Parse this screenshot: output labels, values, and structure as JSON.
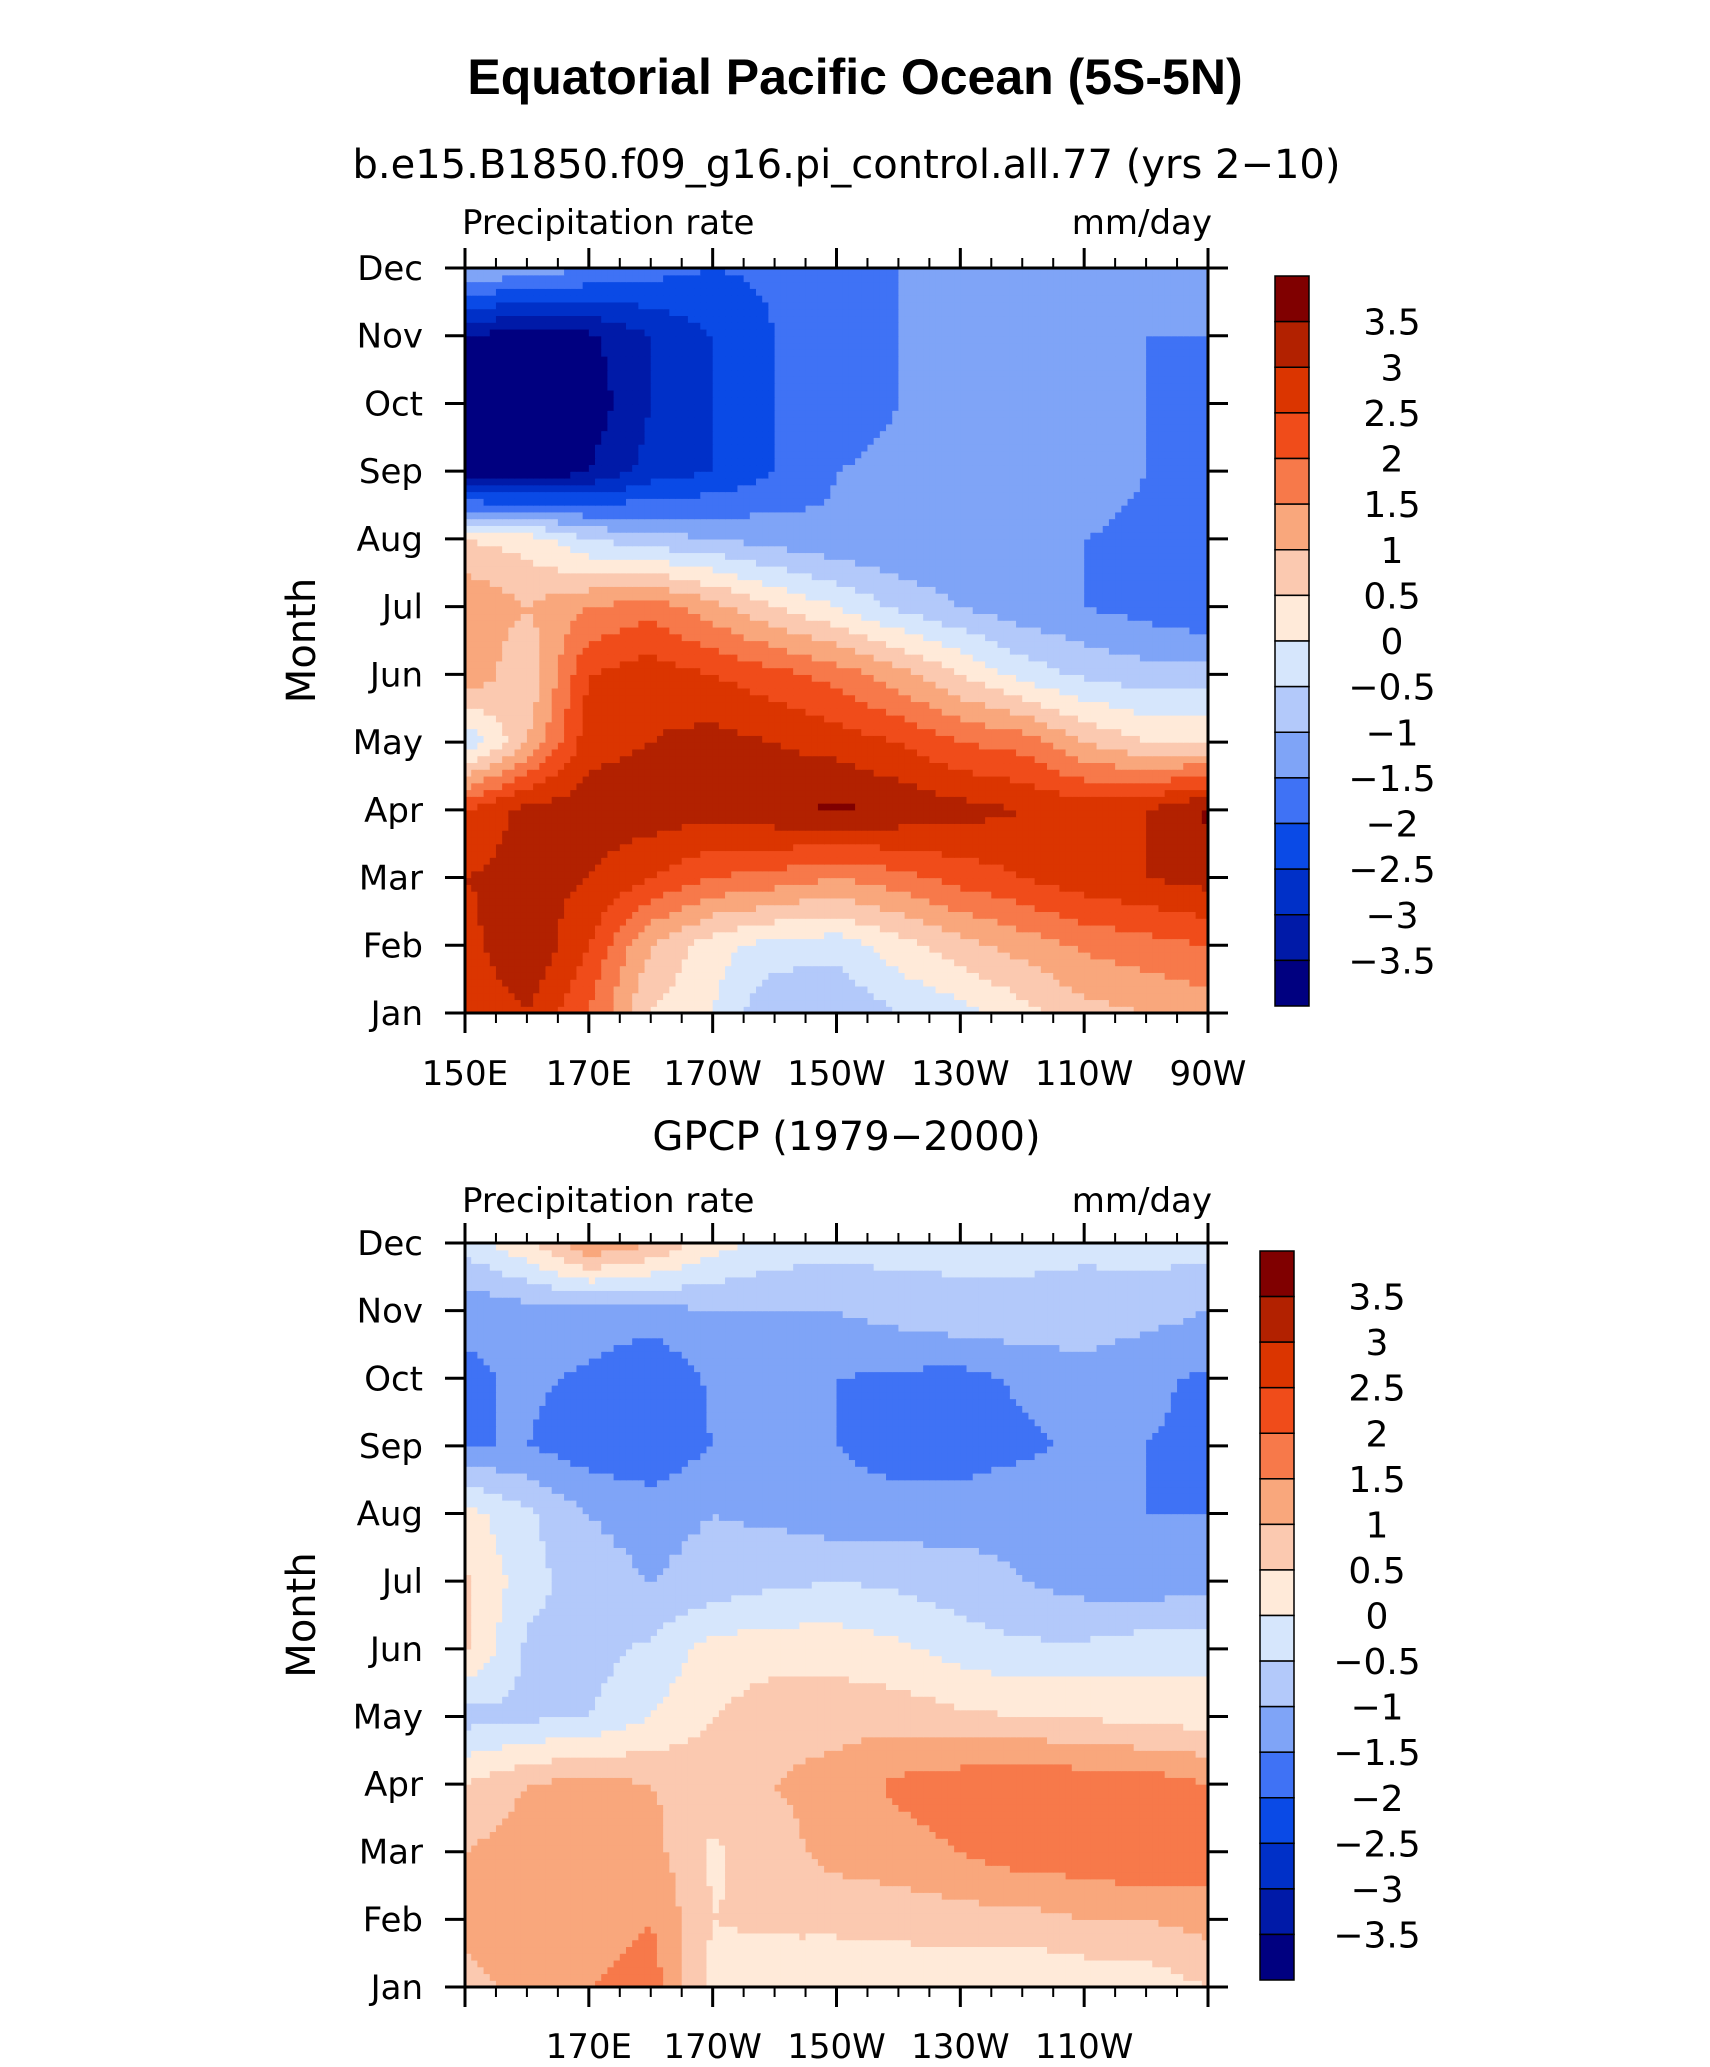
{
  "figure": {
    "title": "Equatorial Pacific Ocean (5S-5N)"
  },
  "chart_data": [
    {
      "type": "heatmap",
      "subtitle": "b.e15.B1850.f09_g16.pi_control.all.77 (yrs 2−10)",
      "left_string": "Precipitation rate",
      "right_string": "mm/day",
      "ylabel": "Month",
      "x_tick_labels": [
        "150E",
        "170E",
        "170W",
        "150W",
        "130W",
        "110W",
        "90W"
      ],
      "x_ticks": [
        150,
        170,
        190,
        210,
        230,
        250,
        270
      ],
      "xlim": [
        150,
        270
      ],
      "y_tick_labels": [
        "Jan",
        "Feb",
        "Mar",
        "Apr",
        "May",
        "Jun",
        "Jul",
        "Aug",
        "Sep",
        "Oct",
        "Nov",
        "Dec"
      ],
      "ylim": [
        1,
        12
      ],
      "colorbar_levels": [
        -3.5,
        -3,
        -2.5,
        -2,
        -1.5,
        -1,
        -0.5,
        0,
        0.5,
        1,
        1.5,
        2,
        2.5,
        3,
        3.5
      ],
      "colorbar_labels": [
        "3.5",
        "3",
        "2.5",
        "2",
        "1.5",
        "1",
        "0.5",
        "0",
        "−0.5",
        "−1",
        "−1.5",
        "−2",
        "−2.5",
        "−3",
        "−3.5"
      ],
      "x": [
        150,
        160,
        170,
        180,
        190,
        200,
        210,
        220,
        230,
        240,
        250,
        260,
        270
      ],
      "y": [
        1,
        2,
        3,
        4,
        5,
        6,
        7,
        8,
        9,
        10,
        11,
        12
      ],
      "values": [
        [
          2.5,
          3.0,
          2.0,
          0.5,
          0.0,
          -1.0,
          -1.0,
          -0.5,
          -0.2,
          0.3,
          0.8,
          1.0,
          1.2
        ],
        [
          2.8,
          3.5,
          2.5,
          1.0,
          0.2,
          -0.2,
          -0.3,
          0.3,
          0.8,
          1.2,
          1.6,
          1.8,
          2.0
        ],
        [
          3.0,
          3.2,
          3.0,
          2.5,
          2.0,
          1.8,
          1.5,
          1.8,
          2.2,
          2.5,
          2.8,
          3.0,
          3.2
        ],
        [
          2.5,
          3.2,
          3.3,
          3.3,
          3.2,
          3.4,
          3.6,
          3.4,
          3.2,
          3.0,
          2.8,
          3.0,
          3.6
        ],
        [
          -0.5,
          1.0,
          2.8,
          3.0,
          3.2,
          3.0,
          2.8,
          2.5,
          2.0,
          1.8,
          1.0,
          0.5,
          0.5
        ],
        [
          1.5,
          0.5,
          2.5,
          2.8,
          2.5,
          2.2,
          1.8,
          1.2,
          0.5,
          -0.2,
          -0.6,
          -0.8,
          -0.7
        ],
        [
          1.5,
          1.0,
          1.5,
          1.8,
          1.2,
          0.5,
          0.0,
          -0.6,
          -1.0,
          -1.3,
          -1.5,
          -1.7,
          -2.0
        ],
        [
          0.5,
          0.3,
          -0.5,
          -0.8,
          -1.0,
          -1.2,
          -1.4,
          -1.5,
          -1.5,
          -1.5,
          -1.5,
          -1.6,
          -2.0
        ],
        [
          -4.0,
          -4.0,
          -3.5,
          -2.8,
          -2.5,
          -2.0,
          -1.5,
          -1.4,
          -1.2,
          -1.2,
          -1.3,
          -1.5,
          -2.0
        ],
        [
          -4.0,
          -4.0,
          -3.8,
          -3.0,
          -2.5,
          -2.0,
          -1.7,
          -1.5,
          -1.3,
          -1.2,
          -1.3,
          -1.5,
          -1.8
        ],
        [
          -3.5,
          -3.8,
          -3.6,
          -3.0,
          -2.5,
          -2.0,
          -1.7,
          -1.5,
          -1.3,
          -1.2,
          -1.2,
          -1.5,
          -1.5
        ],
        [
          -1.0,
          -1.2,
          -1.5,
          -1.8,
          -2.0,
          -1.9,
          -1.7,
          -1.5,
          -1.2,
          -1.0,
          -1.0,
          -1.0,
          -1.2
        ]
      ]
    },
    {
      "type": "heatmap",
      "subtitle": "GPCP (1979−2000)",
      "left_string": "Precipitation rate",
      "right_string": "mm/day",
      "ylabel": "Month",
      "x_tick_labels": [
        "",
        "170E",
        "170W",
        "150W",
        "130W",
        "110W",
        ""
      ],
      "x_ticks": [
        150,
        170,
        190,
        210,
        230,
        250,
        270
      ],
      "xlim": [
        150,
        270
      ],
      "y_tick_labels": [
        "Jan",
        "Feb",
        "Mar",
        "Apr",
        "May",
        "Jun",
        "Jul",
        "Aug",
        "Sep",
        "Oct",
        "Nov",
        "Dec"
      ],
      "ylim": [
        1,
        12
      ],
      "colorbar_levels": [
        -3.5,
        -3,
        -2.5,
        -2,
        -1.5,
        -1,
        -0.5,
        0,
        0.5,
        1,
        1.5,
        2,
        2.5,
        3,
        3.5
      ],
      "colorbar_labels": [
        "3.5",
        "3",
        "2.5",
        "2",
        "1.5",
        "1",
        "0.5",
        "0",
        "−0.5",
        "−1",
        "−1.5",
        "−2",
        "−2.5",
        "−3",
        "−3.5"
      ],
      "x": [
        150,
        160,
        170,
        180,
        190,
        200,
        210,
        220,
        230,
        240,
        250,
        260,
        270
      ],
      "y": [
        1,
        2,
        3,
        4,
        5,
        6,
        7,
        8,
        9,
        10,
        11,
        12
      ],
      "values": [
        [
          0.8,
          1.2,
          1.5,
          1.8,
          0.3,
          0.2,
          0.2,
          0.1,
          0.1,
          0.0,
          0.1,
          0.2,
          0.5
        ],
        [
          1.2,
          1.5,
          1.2,
          1.5,
          0.5,
          0.6,
          0.6,
          0.7,
          0.8,
          0.8,
          1.0,
          1.0,
          1.2
        ],
        [
          1.0,
          1.3,
          1.5,
          1.2,
          0.4,
          0.8,
          1.2,
          1.3,
          1.5,
          1.8,
          1.8,
          2.0,
          1.8
        ],
        [
          0.5,
          1.0,
          1.2,
          1.0,
          0.8,
          1.0,
          1.2,
          1.6,
          1.8,
          2.0,
          1.8,
          1.8,
          1.5
        ],
        [
          -0.7,
          -0.6,
          -0.5,
          0.0,
          0.5,
          0.8,
          0.8,
          0.8,
          0.6,
          0.5,
          0.5,
          0.3,
          0.3
        ],
        [
          0.6,
          -0.6,
          -0.7,
          -0.4,
          0.2,
          0.3,
          0.3,
          0.1,
          -0.2,
          -0.4,
          -0.4,
          -0.2,
          -0.2
        ],
        [
          0.6,
          -0.3,
          -0.8,
          -1.0,
          -0.8,
          -0.6,
          -0.5,
          -0.6,
          -0.8,
          -1.0,
          -1.2,
          -1.3,
          -1.2
        ],
        [
          0.2,
          -0.4,
          -1.0,
          -1.2,
          -1.0,
          -1.1,
          -1.3,
          -1.3,
          -1.2,
          -1.1,
          -1.2,
          -1.5,
          -1.5
        ],
        [
          -1.5,
          -1.5,
          -1.8,
          -1.9,
          -1.5,
          -1.2,
          -1.5,
          -1.7,
          -1.8,
          -1.6,
          -1.4,
          -1.5,
          -1.6
        ],
        [
          -1.6,
          -1.4,
          -1.6,
          -2.0,
          -1.4,
          -1.0,
          -1.5,
          -1.6,
          -1.7,
          -1.4,
          -1.2,
          -1.4,
          -1.6
        ],
        [
          -1.4,
          -1.2,
          -1.2,
          -1.2,
          -1.0,
          -1.0,
          -1.0,
          -0.8,
          -0.6,
          -0.6,
          -0.7,
          -0.8,
          -1.0
        ],
        [
          -0.3,
          0.4,
          1.5,
          1.0,
          0.2,
          -0.2,
          -0.3,
          -0.3,
          -0.4,
          -0.4,
          -0.4,
          -0.3,
          -0.3
        ]
      ]
    }
  ],
  "colors": {
    "palette": [
      "#000080",
      "#001AA8",
      "#0030C8",
      "#0A4AE6",
      "#3F72F5",
      "#7FA4F7",
      "#B3C9FA",
      "#D6E6FC",
      "#FFEAD9",
      "#FBC9B0",
      "#F9A77C",
      "#F7794A",
      "#F04C1A",
      "#DB3500",
      "#B22100",
      "#800000"
    ],
    "axis": "#000000"
  }
}
